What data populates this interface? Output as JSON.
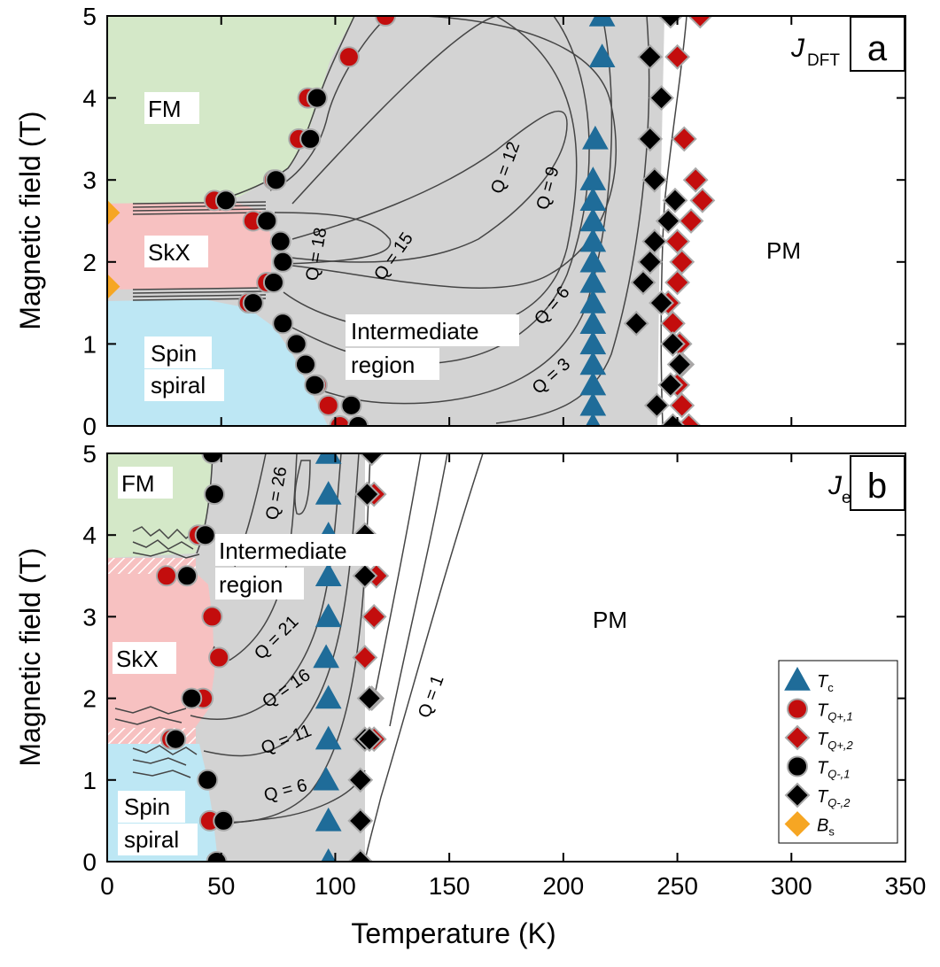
{
  "figure": {
    "xlabel": "Temperature (K)",
    "ylabel": "Magnetic field (T)",
    "xticks": [
      "0",
      "50",
      "100",
      "150",
      "200",
      "250",
      "300",
      "350"
    ],
    "yticks": [
      "0",
      "1",
      "2",
      "3",
      "4",
      "5"
    ]
  },
  "colors": {
    "fm": "#d4e8c8",
    "skx": "#f7c1c1",
    "spiral": "#bde7f4",
    "intermediate": "#d3d3d3",
    "tc": "#1f6c99",
    "tq_plus": "#c30d0d",
    "tq_minus": "#000000",
    "bs": "#f6a623",
    "contour": "#454545"
  },
  "legend": {
    "items": [
      {
        "key": "tc",
        "marker": "triangle",
        "label_main": "T",
        "label_sub": "c"
      },
      {
        "key": "tq_plus1",
        "marker": "circle-red",
        "label_main": "T",
        "label_sub": "Q+,1"
      },
      {
        "key": "tq_plus2",
        "marker": "diamond-red",
        "label_main": "T",
        "label_sub": "Q+,2"
      },
      {
        "key": "tq_minus1",
        "marker": "circle-black",
        "label_main": "T",
        "label_sub": "Q-,1"
      },
      {
        "key": "tq_minus2",
        "marker": "diamond-black",
        "label_main": "T",
        "label_sub": "Q-,2"
      },
      {
        "key": "bs",
        "marker": "diamond-orange",
        "label_main": "B",
        "label_sub": "s"
      }
    ]
  },
  "chart_data": [
    {
      "type": "scatter",
      "panel_label": "a",
      "j_label_main": "J",
      "j_label_sub": "DFT",
      "xlim": [
        0,
        350
      ],
      "ylim": [
        0,
        5
      ],
      "region_labels": {
        "fm": "FM",
        "skx": "SkX",
        "spiral_1": "Spin",
        "spiral_2": "spiral",
        "intermediate_1": "Intermediate",
        "intermediate_2": "region",
        "pm": "PM"
      },
      "contour_labels": [
        "Q = 18",
        "Q = 15",
        "Q = 12",
        "Q = 9",
        "Q = 6",
        "Q = 3"
      ],
      "series": {
        "tc": [
          [
            213,
            0
          ],
          [
            213,
            0.25
          ],
          [
            213,
            0.5
          ],
          [
            213,
            0.75
          ],
          [
            213,
            1
          ],
          [
            213,
            1.25
          ],
          [
            213,
            1.5
          ],
          [
            213,
            1.75
          ],
          [
            213,
            2
          ],
          [
            213,
            2.25
          ],
          [
            213,
            2.5
          ],
          [
            213,
            2.75
          ],
          [
            213,
            3
          ],
          [
            214,
            3.5
          ],
          [
            217,
            4.5
          ],
          [
            217,
            5
          ]
        ],
        "tq_plus1": [
          [
            47,
            2.75
          ],
          [
            64,
            2.5
          ],
          [
            73,
            3
          ],
          [
            84,
            3.5
          ],
          [
            88,
            4
          ],
          [
            106,
            4.5
          ],
          [
            122,
            5
          ],
          [
            62,
            1.5
          ],
          [
            92,
            0.5
          ],
          [
            97,
            0.25
          ],
          [
            102,
            0
          ],
          [
            70,
            1.75
          ]
        ],
        "tq_plus2": [
          [
            260,
            5
          ],
          [
            250,
            4.5
          ],
          [
            253,
            3.5
          ],
          [
            258,
            3
          ],
          [
            261,
            2.75
          ],
          [
            256,
            2.5
          ],
          [
            250,
            2.25
          ],
          [
            252,
            2
          ],
          [
            250,
            1.75
          ],
          [
            246,
            1.5
          ],
          [
            248,
            1.25
          ],
          [
            251,
            1
          ],
          [
            252,
            0.75
          ],
          [
            250,
            0.5
          ],
          [
            252,
            0.25
          ],
          [
            255,
            0
          ]
        ],
        "tq_minus1": [
          [
            52,
            2.75
          ],
          [
            74,
            3
          ],
          [
            89,
            3.5
          ],
          [
            92,
            4
          ],
          [
            70,
            2.5
          ],
          [
            76,
            2.25
          ],
          [
            77,
            2
          ],
          [
            73,
            1.75
          ],
          [
            64,
            1.5
          ],
          [
            77,
            1.25
          ],
          [
            83,
            1
          ],
          [
            87,
            0.75
          ],
          [
            91,
            0.5
          ],
          [
            107,
            0.25
          ],
          [
            110,
            0
          ]
        ],
        "tq_minus2": [
          [
            247,
            5
          ],
          [
            238,
            4.5
          ],
          [
            243,
            4
          ],
          [
            238,
            3.5
          ],
          [
            240,
            3
          ],
          [
            249,
            2.75
          ],
          [
            246,
            2.5
          ],
          [
            240,
            2.25
          ],
          [
            238,
            2
          ],
          [
            235,
            1.75
          ],
          [
            243,
            1.5
          ],
          [
            232,
            1.25
          ],
          [
            248,
            1
          ],
          [
            251,
            0.75
          ],
          [
            247,
            0.5
          ],
          [
            241,
            0.25
          ],
          [
            248,
            0
          ]
        ],
        "bs": [
          [
            0,
            2.6
          ],
          [
            0,
            1.7
          ]
        ]
      }
    },
    {
      "type": "scatter",
      "panel_label": "b",
      "j_label_main": "J",
      "j_label_sub": "eff",
      "xlim": [
        0,
        350
      ],
      "ylim": [
        0,
        5
      ],
      "region_labels": {
        "fm": "FM",
        "skx": "SkX",
        "spiral_1": "Spin",
        "spiral_2": "spiral",
        "intermediate_1": "Intermediate",
        "intermediate_2": "region",
        "pm": "PM"
      },
      "contour_labels": [
        "Q = 26",
        "Q = 21",
        "Q = 16",
        "Q = 11",
        "Q = 6",
        "Q = 1"
      ],
      "series": {
        "tc": [
          [
            97,
            0
          ],
          [
            97,
            0.5
          ],
          [
            96,
            1
          ],
          [
            97,
            1.5
          ],
          [
            97,
            2
          ],
          [
            96,
            2.5
          ],
          [
            97,
            3
          ],
          [
            97,
            3.5
          ],
          [
            97,
            4
          ],
          [
            97,
            4.5
          ],
          [
            97,
            5
          ]
        ],
        "tq_plus1": [
          [
            45,
            0.5
          ],
          [
            28,
            1.5
          ],
          [
            42,
            2
          ],
          [
            49,
            2.5
          ],
          [
            46,
            3
          ],
          [
            26,
            3.5
          ],
          [
            40,
            4
          ]
        ],
        "tq_plus2": [
          [
            117,
            1.5
          ],
          [
            116,
            2
          ],
          [
            113,
            2.5
          ],
          [
            117,
            3
          ],
          [
            118,
            3.5
          ],
          [
            117,
            4.5
          ]
        ],
        "tq_minus1": [
          [
            48,
            0
          ],
          [
            51,
            0.5
          ],
          [
            44,
            1
          ],
          [
            30,
            1.5
          ],
          [
            37,
            2
          ],
          [
            35,
            3.5
          ],
          [
            43,
            4
          ],
          [
            47,
            4.5
          ],
          [
            46,
            5
          ]
        ],
        "tq_minus2": [
          [
            111,
            0
          ],
          [
            111,
            0.5
          ],
          [
            111,
            1
          ],
          [
            113,
            1.5
          ],
          [
            115,
            1.5
          ],
          [
            115,
            2
          ],
          [
            113,
            3.5
          ],
          [
            113,
            4
          ],
          [
            114,
            4.5
          ],
          [
            116,
            5
          ]
        ],
        "bs": []
      }
    }
  ]
}
